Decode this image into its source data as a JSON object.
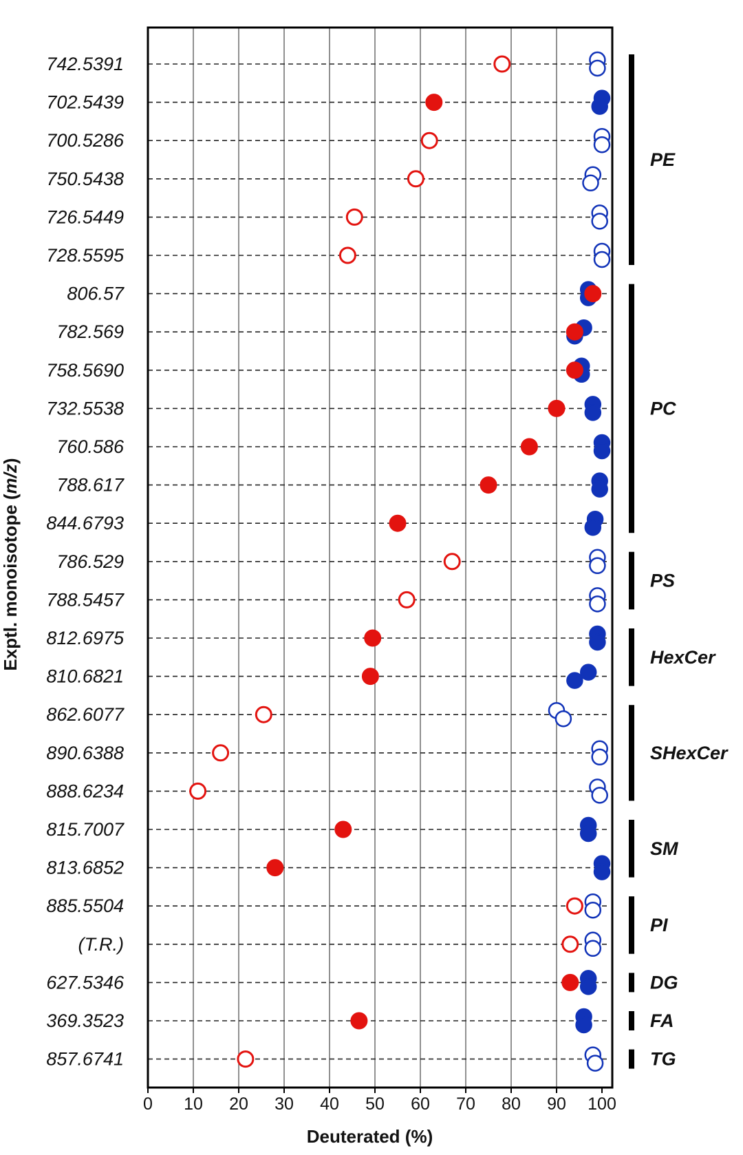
{
  "chart_data": {
    "type": "scatter",
    "xlabel": "Deuterated (%)",
    "ylabel": "Exptl. monoisotope (m/z)",
    "xlim": [
      0,
      100
    ],
    "xticks": [
      "0",
      "10",
      "20",
      "30",
      "40",
      "50",
      "60",
      "70",
      "80",
      "90",
      "100"
    ],
    "grid": "vertical",
    "colors": {
      "red": "#e3130f",
      "blue": "#1133b8"
    },
    "rows": [
      {
        "label": "742.5391",
        "red": 78,
        "red_filled": false,
        "blue": [
          99,
          99
        ],
        "blue_filled": false
      },
      {
        "label": "702.5439",
        "red": 63,
        "red_filled": true,
        "blue": [
          100,
          99.5
        ],
        "blue_filled": true
      },
      {
        "label": "700.5286",
        "red": 62,
        "red_filled": false,
        "blue": [
          100,
          100
        ],
        "blue_filled": false
      },
      {
        "label": "750.5438",
        "red": 59,
        "red_filled": false,
        "blue": [
          98,
          97.5
        ],
        "blue_filled": false
      },
      {
        "label": "726.5449",
        "red": 45.5,
        "red_filled": false,
        "blue": [
          99.5,
          99.5
        ],
        "blue_filled": false
      },
      {
        "label": "728.5595",
        "red": 44,
        "red_filled": false,
        "blue": [
          100,
          100
        ],
        "blue_filled": false
      },
      {
        "label": "806.57",
        "red": 98,
        "red_filled": true,
        "blue": [
          97,
          97
        ],
        "blue_filled": true
      },
      {
        "label": "782.569",
        "red": 94,
        "red_filled": true,
        "blue": [
          96,
          94
        ],
        "blue_filled": true
      },
      {
        "label": "758.5690",
        "red": 94,
        "red_filled": true,
        "blue": [
          95.5,
          95.5
        ],
        "blue_filled": true
      },
      {
        "label": "732.5538",
        "red": 90,
        "red_filled": true,
        "blue": [
          98,
          98
        ],
        "blue_filled": true
      },
      {
        "label": "760.586",
        "red": 84,
        "red_filled": true,
        "blue": [
          100,
          100
        ],
        "blue_filled": true
      },
      {
        "label": "788.617",
        "red": 75,
        "red_filled": true,
        "blue": [
          99.5,
          99.5
        ],
        "blue_filled": true
      },
      {
        "label": "844.6793",
        "red": 55,
        "red_filled": true,
        "blue": [
          98.5,
          98
        ],
        "blue_filled": true
      },
      {
        "label": "786.529",
        "red": 67,
        "red_filled": false,
        "blue": [
          99,
          99
        ],
        "blue_filled": false
      },
      {
        "label": "788.5457",
        "red": 57,
        "red_filled": false,
        "blue": [
          99,
          99
        ],
        "blue_filled": false
      },
      {
        "label": "812.6975",
        "red": 49.5,
        "red_filled": true,
        "blue": [
          99,
          99
        ],
        "blue_filled": true
      },
      {
        "label": "810.6821",
        "red": 49,
        "red_filled": true,
        "blue": [
          97,
          94
        ],
        "blue_filled": true
      },
      {
        "label": "862.6077",
        "red": 25.5,
        "red_filled": false,
        "blue": [
          90,
          91.5
        ],
        "blue_filled": false
      },
      {
        "label": "890.6388",
        "red": 16,
        "red_filled": false,
        "blue": [
          99.5,
          99.5
        ],
        "blue_filled": false
      },
      {
        "label": "888.6234",
        "red": 11,
        "red_filled": false,
        "blue": [
          99,
          99.5
        ],
        "blue_filled": false
      },
      {
        "label": "815.7007",
        "red": 43,
        "red_filled": true,
        "blue": [
          97,
          97
        ],
        "blue_filled": true
      },
      {
        "label": "813.6852",
        "red": 28,
        "red_filled": true,
        "blue": [
          100,
          100
        ],
        "blue_filled": true
      },
      {
        "label": "885.5504",
        "red": 94,
        "red_filled": false,
        "blue": [
          98,
          98
        ],
        "blue_filled": false
      },
      {
        "label": "(T.R.)",
        "red": 93,
        "red_filled": false,
        "blue": [
          98,
          98
        ],
        "blue_filled": false
      },
      {
        "label": "627.5346",
        "red": 93,
        "red_filled": true,
        "blue": [
          97,
          97
        ],
        "blue_filled": true
      },
      {
        "label": "369.3523",
        "red": 46.5,
        "red_filled": true,
        "blue": [
          96,
          96
        ],
        "blue_filled": true
      },
      {
        "label": "857.6741",
        "red": 21.5,
        "red_filled": false,
        "blue": [
          98,
          98.5
        ],
        "blue_filled": false
      }
    ],
    "groups": [
      {
        "label": "PE",
        "start": 0,
        "end": 5
      },
      {
        "label": "PC",
        "start": 6,
        "end": 12
      },
      {
        "label": "PS",
        "start": 13,
        "end": 14
      },
      {
        "label": "HexCer",
        "start": 15,
        "end": 16
      },
      {
        "label": "SHexCer",
        "start": 17,
        "end": 19
      },
      {
        "label": "SM",
        "start": 20,
        "end": 21
      },
      {
        "label": "PI",
        "start": 22,
        "end": 23
      },
      {
        "label": "DG",
        "start": 24,
        "end": 24
      },
      {
        "label": "FA",
        "start": 25,
        "end": 25
      },
      {
        "label": "TG",
        "start": 26,
        "end": 26
      }
    ]
  }
}
